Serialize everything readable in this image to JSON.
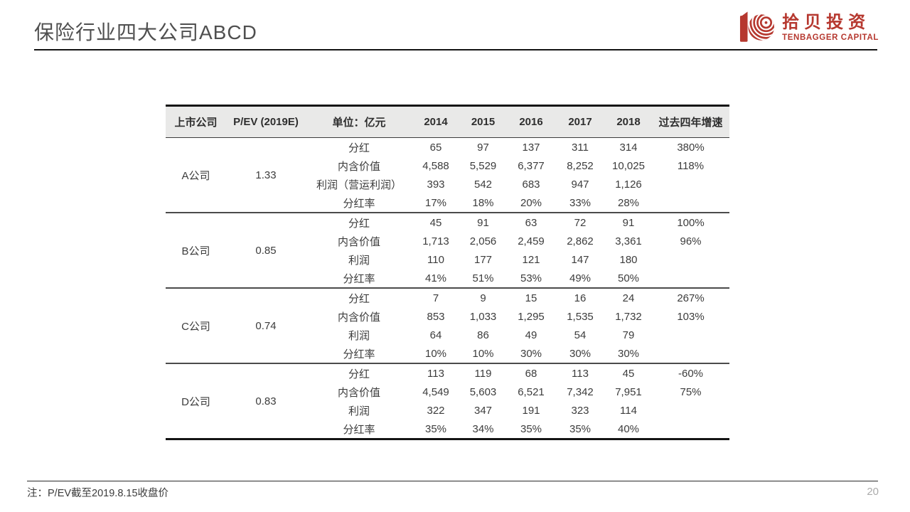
{
  "slide": {
    "title": "保险行业四大公司ABCD",
    "footnote": "注：P/EV截至2019.8.15收盘价",
    "page_number": "20"
  },
  "logo": {
    "name_cn": "拾贝投资",
    "name_en": "TENBAGGER CAPITAL",
    "brand_color": "#b6382f",
    "mark": "tenbagger-10-shell-mark"
  },
  "table": {
    "headers": [
      "上市公司",
      "P/EV (2019E)",
      "单位：亿元",
      "2014",
      "2015",
      "2016",
      "2017",
      "2018",
      "过去四年增速"
    ],
    "groups": [
      {
        "company": "A公司",
        "pev": "1.33",
        "metrics": [
          {
            "label": "分红",
            "values": [
              "65",
              "97",
              "137",
              "311",
              "314"
            ],
            "growth": "380%"
          },
          {
            "label": "内含价值",
            "values": [
              "4,588",
              "5,529",
              "6,377",
              "8,252",
              "10,025"
            ],
            "growth": "118%"
          },
          {
            "label": "利润（营运利润）",
            "values": [
              "393",
              "542",
              "683",
              "947",
              "1,126"
            ],
            "growth": ""
          },
          {
            "label": "分红率",
            "values": [
              "17%",
              "18%",
              "20%",
              "33%",
              "28%"
            ],
            "growth": ""
          }
        ]
      },
      {
        "company": "B公司",
        "pev": "0.85",
        "metrics": [
          {
            "label": "分红",
            "values": [
              "45",
              "91",
              "63",
              "72",
              "91"
            ],
            "growth": "100%"
          },
          {
            "label": "内含价值",
            "values": [
              "1,713",
              "2,056",
              "2,459",
              "2,862",
              "3,361"
            ],
            "growth": "96%"
          },
          {
            "label": "利润",
            "values": [
              "110",
              "177",
              "121",
              "147",
              "180"
            ],
            "growth": ""
          },
          {
            "label": "分红率",
            "values": [
              "41%",
              "51%",
              "53%",
              "49%",
              "50%"
            ],
            "growth": ""
          }
        ]
      },
      {
        "company": "C公司",
        "pev": "0.74",
        "metrics": [
          {
            "label": "分红",
            "values": [
              "7",
              "9",
              "15",
              "16",
              "24"
            ],
            "growth": "267%"
          },
          {
            "label": "内含价值",
            "values": [
              "853",
              "1,033",
              "1,295",
              "1,535",
              "1,732"
            ],
            "growth": "103%"
          },
          {
            "label": "利润",
            "values": [
              "64",
              "86",
              "49",
              "54",
              "79"
            ],
            "growth": ""
          },
          {
            "label": "分红率",
            "values": [
              "10%",
              "10%",
              "30%",
              "30%",
              "30%"
            ],
            "growth": ""
          }
        ]
      },
      {
        "company": "D公司",
        "pev": "0.83",
        "metrics": [
          {
            "label": "分红",
            "values": [
              "113",
              "119",
              "68",
              "113",
              "45"
            ],
            "growth": "-60%"
          },
          {
            "label": "内含价值",
            "values": [
              "4,549",
              "5,603",
              "6,521",
              "7,342",
              "7,951"
            ],
            "growth": "75%"
          },
          {
            "label": "利润",
            "values": [
              "322",
              "347",
              "191",
              "323",
              "114"
            ],
            "growth": ""
          },
          {
            "label": "分红率",
            "values": [
              "35%",
              "34%",
              "35%",
              "35%",
              "40%"
            ],
            "growth": ""
          }
        ]
      }
    ]
  }
}
